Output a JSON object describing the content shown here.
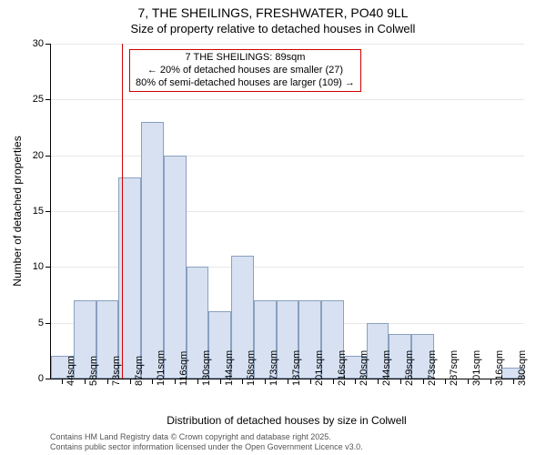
{
  "chart": {
    "type": "histogram",
    "title": "7, THE SHEILINGS, FRESHWATER, PO40 9LL",
    "subtitle": "Size of property relative to detached houses in Colwell",
    "y_axis": {
      "label": "Number of detached properties",
      "min": 0,
      "max": 30,
      "ticks": [
        0,
        5,
        10,
        15,
        20,
        25,
        30
      ]
    },
    "x_axis": {
      "label": "Distribution of detached houses by size in Colwell",
      "categories": [
        "44sqm",
        "58sqm",
        "73sqm",
        "87sqm",
        "101sqm",
        "116sqm",
        "130sqm",
        "144sqm",
        "158sqm",
        "173sqm",
        "187sqm",
        "201sqm",
        "216sqm",
        "230sqm",
        "244sqm",
        "259sqm",
        "273sqm",
        "287sqm",
        "301sqm",
        "316sqm",
        "330sqm"
      ]
    },
    "values": [
      2,
      7,
      7,
      18,
      23,
      20,
      10,
      6,
      11,
      7,
      7,
      7,
      7,
      2,
      5,
      4,
      4,
      0,
      0,
      0,
      1
    ],
    "bar_fill": "#d7e1f1",
    "bar_border": "#8aa0c0",
    "background_color": "#ffffff",
    "grid_color": "#e8e8e8",
    "reference_line": {
      "index_position": 3.15,
      "color": "#d00000"
    },
    "annotation": {
      "line1": "7 THE SHEILINGS: 89sqm",
      "line2": "← 20% of detached houses are smaller (27)",
      "line3": "80% of semi-detached houses are larger (109) →"
    },
    "footer": {
      "line1": "Contains HM Land Registry data © Crown copyright and database right 2025.",
      "line2": "Contains public sector information licensed under the Open Government Licence v3.0."
    },
    "title_fontsize": 14,
    "subtitle_fontsize": 13,
    "axis_label_fontsize": 12,
    "tick_fontsize": 11,
    "annotation_fontsize": 11,
    "footer_fontsize": 9
  }
}
